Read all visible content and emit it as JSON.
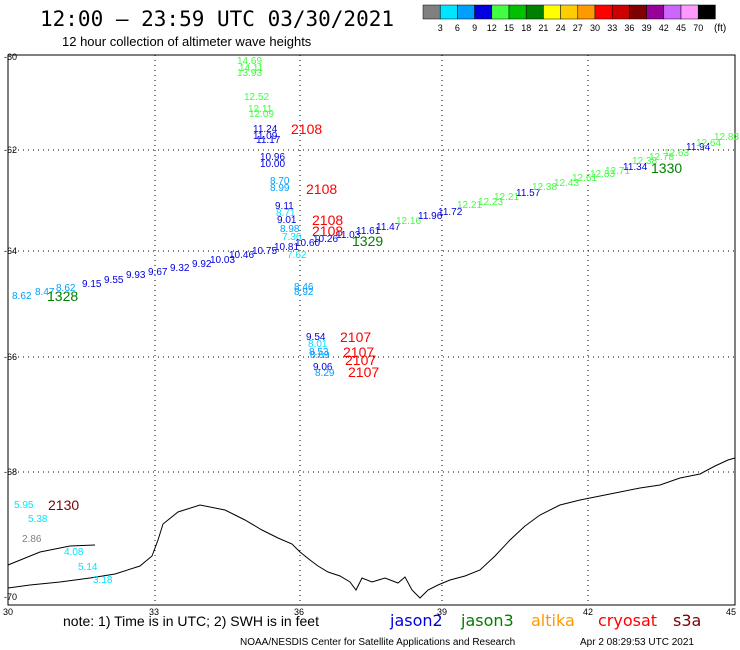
{
  "header": {
    "title": "12:00 – 23:59 UTC 03/30/2021",
    "subtitle": "12 hour collection of altimeter wave heights"
  },
  "legend": {
    "unit": "(ft)",
    "bins": [
      {
        "label": "3",
        "color": "#808080"
      },
      {
        "label": "6",
        "color": "#00e5ff"
      },
      {
        "label": "9",
        "color": "#00a0ff"
      },
      {
        "label": "12",
        "color": "#0000e0"
      },
      {
        "label": "15",
        "color": "#40ff40"
      },
      {
        "label": "18",
        "color": "#00c000"
      },
      {
        "label": "21",
        "color": "#008000"
      },
      {
        "label": "24",
        "color": "#ffff00"
      },
      {
        "label": "27",
        "color": "#ffcc00"
      },
      {
        "label": "30",
        "color": "#ff9900"
      },
      {
        "label": "33",
        "color": "#ff0000"
      },
      {
        "label": "36",
        "color": "#cc0000"
      },
      {
        "label": "39",
        "color": "#800000"
      },
      {
        "label": "42",
        "color": "#990099"
      },
      {
        "label": "45",
        "color": "#cc66ff"
      },
      {
        "label": "70",
        "color": "#ff99ff"
      },
      {
        "label": "",
        "color": "#000000"
      }
    ]
  },
  "axes": {
    "lon_ticks": [
      "30",
      "33",
      "36",
      "39",
      "42",
      "45"
    ],
    "lat_ticks": [
      "-60",
      "-62",
      "-64",
      "-66",
      "-68",
      "-70"
    ]
  },
  "passes": [
    {
      "label": "2108",
      "color": "#ff0000"
    },
    {
      "label": "2108",
      "color": "#ff0000"
    },
    {
      "label": "2108",
      "color": "#ff0000"
    },
    {
      "label": "2108",
      "color": "#ff0000"
    },
    {
      "label": "1330",
      "color": "#008000"
    },
    {
      "label": "1329",
      "color": "#008000"
    },
    {
      "label": "1328",
      "color": "#008000"
    },
    {
      "label": "2107",
      "color": "#ff0000"
    },
    {
      "label": "2107",
      "color": "#ff0000"
    },
    {
      "label": "2107",
      "color": "#ff0000"
    },
    {
      "label": "2107",
      "color": "#ff0000"
    },
    {
      "label": "2130",
      "color": "#800000"
    }
  ],
  "observations": [
    {
      "v": "14.69",
      "c": "#40ff40"
    },
    {
      "v": "14.11",
      "c": "#40ff40"
    },
    {
      "v": "13.93",
      "c": "#40ff40"
    },
    {
      "v": "12.52",
      "c": "#40ff40"
    },
    {
      "v": "12.11",
      "c": "#40ff40"
    },
    {
      "v": "12.09",
      "c": "#40ff40"
    },
    {
      "v": "11.24",
      "c": "#0000e0"
    },
    {
      "v": "11.09",
      "c": "#0000e0"
    },
    {
      "v": "11.17",
      "c": "#0000e0"
    },
    {
      "v": "10.96",
      "c": "#0000e0"
    },
    {
      "v": "10.00",
      "c": "#0000e0"
    },
    {
      "v": "8.70",
      "c": "#00a0ff"
    },
    {
      "v": "8.99",
      "c": "#00a0ff"
    },
    {
      "v": "9.11",
      "c": "#0000e0"
    },
    {
      "v": "8.71",
      "c": "#00e5ff"
    },
    {
      "v": "9.01",
      "c": "#0000e0"
    },
    {
      "v": "8.98",
      "c": "#00a0ff"
    },
    {
      "v": "7.36",
      "c": "#00e5ff"
    },
    {
      "v": "7.62",
      "c": "#00e5ff"
    },
    {
      "v": "8.46",
      "c": "#00a0ff"
    },
    {
      "v": "8.92",
      "c": "#00a0ff"
    },
    {
      "v": "9.54",
      "c": "#0000e0"
    },
    {
      "v": "8.01",
      "c": "#00e5ff"
    },
    {
      "v": "8.53",
      "c": "#00a0ff"
    },
    {
      "v": "8.69",
      "c": "#00a0ff"
    },
    {
      "v": "9.06",
      "c": "#0000e0"
    },
    {
      "v": "8.29",
      "c": "#00a0ff"
    },
    {
      "v": "8.62",
      "c": "#00a0ff"
    },
    {
      "v": "8.47",
      "c": "#00a0ff"
    },
    {
      "v": "8.62",
      "c": "#00a0ff"
    },
    {
      "v": "9.15",
      "c": "#0000e0"
    },
    {
      "v": "9.55",
      "c": "#0000e0"
    },
    {
      "v": "9.93",
      "c": "#0000e0"
    },
    {
      "v": "9.67",
      "c": "#0000e0"
    },
    {
      "v": "9.32",
      "c": "#0000e0"
    },
    {
      "v": "9.92",
      "c": "#0000e0"
    },
    {
      "v": "10.03",
      "c": "#0000e0"
    },
    {
      "v": "10.46",
      "c": "#0000e0"
    },
    {
      "v": "10.75",
      "c": "#0000e0"
    },
    {
      "v": "10.81",
      "c": "#0000e0"
    },
    {
      "v": "10.60",
      "c": "#0000e0"
    },
    {
      "v": "10.26",
      "c": "#0000e0"
    },
    {
      "v": "11.03",
      "c": "#0000e0"
    },
    {
      "v": "11.61",
      "c": "#0000e0"
    },
    {
      "v": "11.47",
      "c": "#0000e0"
    },
    {
      "v": "12.16",
      "c": "#40ff40"
    },
    {
      "v": "11.96",
      "c": "#0000e0"
    },
    {
      "v": "11.72",
      "c": "#0000e0"
    },
    {
      "v": "12.21",
      "c": "#40ff40"
    },
    {
      "v": "12.23",
      "c": "#40ff40"
    },
    {
      "v": "12.21",
      "c": "#40ff40"
    },
    {
      "v": "11.57",
      "c": "#0000e0"
    },
    {
      "v": "12.38",
      "c": "#40ff40"
    },
    {
      "v": "12.43",
      "c": "#40ff40"
    },
    {
      "v": "12.61",
      "c": "#40ff40"
    },
    {
      "v": "12.83",
      "c": "#40ff40"
    },
    {
      "v": "12.71",
      "c": "#40ff40"
    },
    {
      "v": "11.34",
      "c": "#0000e0"
    },
    {
      "v": "12.38",
      "c": "#40ff40"
    },
    {
      "v": "12.78",
      "c": "#40ff40"
    },
    {
      "v": "12.63",
      "c": "#40ff40"
    },
    {
      "v": "11.94",
      "c": "#0000e0"
    },
    {
      "v": "12.64",
      "c": "#40ff40"
    },
    {
      "v": "12.83",
      "c": "#40ff40"
    },
    {
      "v": "5.95",
      "c": "#00e5ff"
    },
    {
      "v": "5.38",
      "c": "#00e5ff"
    },
    {
      "v": "2.86",
      "c": "#808080"
    },
    {
      "v": "4.08",
      "c": "#00e5ff"
    },
    {
      "v": "5.14",
      "c": "#00e5ff"
    },
    {
      "v": "3.18",
      "c": "#00e5ff"
    }
  ],
  "footer": {
    "note": "note:  1) Time is in UTC;  2) SWH is in feet",
    "credit": "NOAA/NESDIS Center for Satellite Applications and Research",
    "timestamp": "Apr  2 08:29:53 UTC 2021",
    "satellites": [
      {
        "name": "jason2",
        "color": "#0000e0"
      },
      {
        "name": "jason3",
        "color": "#008000"
      },
      {
        "name": "altika",
        "color": "#ff9900"
      },
      {
        "name": "cryosat",
        "color": "#ff0000"
      },
      {
        "name": "s3a",
        "color": "#800000"
      }
    ]
  }
}
